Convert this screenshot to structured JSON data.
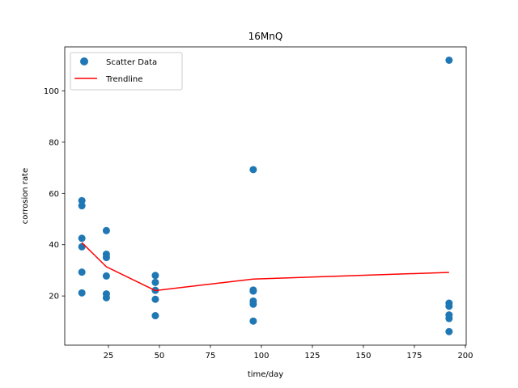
{
  "chart_data": {
    "type": "scatter",
    "title": "16MnQ",
    "xlabel": "time/day",
    "ylabel": "corrosion rate",
    "xlim": [
      3.6,
      200.4
    ],
    "ylim": [
      0.8,
      117.2
    ],
    "xticks": [
      25,
      50,
      75,
      100,
      125,
      150,
      175,
      200
    ],
    "yticks": [
      20,
      40,
      60,
      80,
      100
    ],
    "grid": false,
    "legend": {
      "placement": "top-left"
    },
    "colors": {
      "scatter": "#1f77b4",
      "trend": "#ff0000"
    },
    "series": [
      {
        "name": "Scatter Data",
        "kind": "scatter",
        "points": [
          [
            12,
            57.2
          ],
          [
            12,
            55.2
          ],
          [
            12,
            42.5
          ],
          [
            12,
            39.2
          ],
          [
            12,
            29.3
          ],
          [
            12,
            21.2
          ],
          [
            24,
            45.5
          ],
          [
            24,
            36.3
          ],
          [
            24,
            35.0
          ],
          [
            24,
            27.8
          ],
          [
            24,
            20.8
          ],
          [
            24,
            19.3
          ],
          [
            48,
            28.0
          ],
          [
            48,
            25.3
          ],
          [
            48,
            22.2
          ],
          [
            48,
            18.7
          ],
          [
            48,
            12.3
          ],
          [
            96,
            69.3
          ],
          [
            96,
            22.3
          ],
          [
            96,
            21.9
          ],
          [
            96,
            18.0
          ],
          [
            96,
            16.8
          ],
          [
            96,
            10.2
          ],
          [
            192,
            112.0
          ],
          [
            192,
            17.2
          ],
          [
            192,
            16.0
          ],
          [
            192,
            12.6
          ],
          [
            192,
            11.2
          ],
          [
            192,
            6.1
          ]
        ]
      },
      {
        "name": "Trendline",
        "kind": "line",
        "points": [
          [
            12,
            40.8
          ],
          [
            24,
            31.4
          ],
          [
            48,
            22.1
          ],
          [
            96,
            26.6
          ],
          [
            192,
            29.2
          ]
        ]
      }
    ]
  }
}
